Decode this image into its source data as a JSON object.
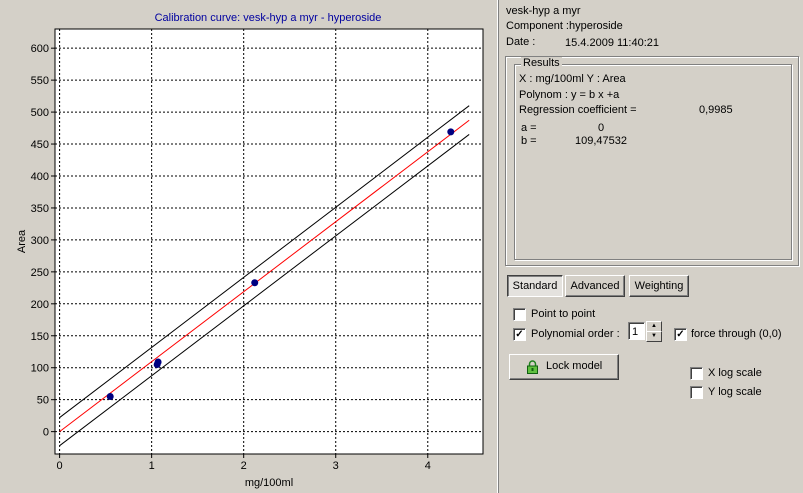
{
  "chart_pane": {
    "title": "Calibration curve: vesk-hyp a myr - hyperoside",
    "colors": {
      "title": "#0000a0",
      "fit_line": "#ff0000",
      "band": "#000000",
      "points": "#000080",
      "grid": "#000000"
    }
  },
  "chart_data": {
    "type": "scatter",
    "title": "Calibration curve: vesk-hyp a myr - hyperoside",
    "xlabel": "mg/100ml",
    "ylabel": "Area",
    "xlim": [
      -0.05,
      4.6
    ],
    "ylim": [
      -35,
      630
    ],
    "x_ticks": [
      0,
      1,
      2,
      3,
      4
    ],
    "y_ticks": [
      0,
      50,
      100,
      150,
      200,
      250,
      300,
      350,
      400,
      450,
      500,
      550,
      600
    ],
    "grid": true,
    "series": [
      {
        "x": [
          0.55,
          1.06,
          1.07,
          2.12,
          4.25
        ],
        "y": [
          55,
          105,
          109,
          233,
          469
        ]
      }
    ],
    "fit": {
      "a": 0,
      "b": 109.47532,
      "x_range": [
        0,
        4.45
      ]
    },
    "confidence_band": {
      "lower": {
        "x0": 0,
        "y0": -22,
        "x1": 4.45,
        "y1": 465
      },
      "upper": {
        "x0": 0,
        "y0": 22,
        "x1": 4.45,
        "y1": 510
      }
    }
  },
  "info": {
    "sample": "vesk-hyp a myr",
    "component_label": "Component :",
    "component_value": "hyperoside",
    "date_label": "Date :",
    "date_value": "15.4.2009 11:40:21"
  },
  "results": {
    "legend": "Results",
    "axes_line": "X : mg/100ml   Y : Area",
    "polynom_line": "Polynom : y = b x +a",
    "regression_label": "Regression coefficient =",
    "regression_value": "0,9985",
    "a_label": "a =",
    "a_value": "0",
    "b_label": "b =",
    "b_value": "109,47532"
  },
  "tabs": [
    {
      "label": "Standard",
      "pressed": true
    },
    {
      "label": "Advanced",
      "pressed": false
    },
    {
      "label": "Weighting",
      "pressed": false
    }
  ],
  "options": {
    "point_to_point": {
      "label": "Point to point",
      "checked": false
    },
    "polynomial_order": {
      "label": "Polynomial order :",
      "checked": true,
      "value": "1"
    },
    "force_through": {
      "label": "force through (0,0)",
      "checked": true
    },
    "x_log": {
      "label": "X log scale",
      "checked": false
    },
    "y_log": {
      "label": "Y log scale",
      "checked": false
    }
  },
  "lock_button": {
    "label": "Lock model",
    "icon": "lock-icon"
  }
}
